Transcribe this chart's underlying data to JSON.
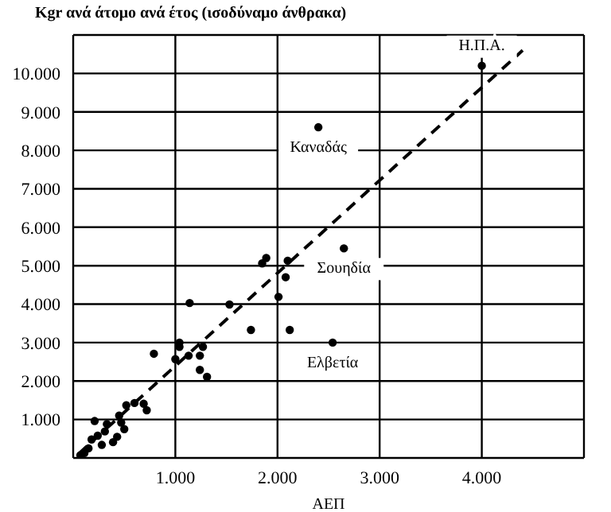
{
  "chart_data": {
    "type": "scatter",
    "title": "Kgr ανά άτομο ανά έτος (ισοδύναμο άνθρακα)",
    "xlabel": "ΑΕΠ",
    "xlim": [
      0,
      5000
    ],
    "ylim": [
      0,
      11000
    ],
    "xticks": [
      {
        "value": 1000,
        "label": "1.000"
      },
      {
        "value": 2000,
        "label": "2.000"
      },
      {
        "value": 3000,
        "label": "3.000"
      },
      {
        "value": 4000,
        "label": "4.000"
      }
    ],
    "yticks": [
      {
        "value": 1000,
        "label": "1.000"
      },
      {
        "value": 2000,
        "label": "2.000"
      },
      {
        "value": 3000,
        "label": "3.000"
      },
      {
        "value": 4000,
        "label": "4.000"
      },
      {
        "value": 5000,
        "label": "5.000"
      },
      {
        "value": 6000,
        "label": "6.000"
      },
      {
        "value": 7000,
        "label": "7.000"
      },
      {
        "value": 8000,
        "label": "8.000"
      },
      {
        "value": 9000,
        "label": "9.000"
      },
      {
        "value": 10000,
        "label": "10.000"
      }
    ],
    "grid": true,
    "marker": "circle",
    "series": [
      {
        "type": "scatter",
        "color": "#000000",
        "x": [
          4000,
          2400,
          2650,
          2540,
          2120,
          1740,
          1530,
          1140,
          1850,
          1890,
          2100,
          2080,
          2010,
          1040,
          1040,
          1000,
          1130,
          1270,
          1240,
          1240,
          1310,
          790,
          690,
          720,
          600,
          520,
          450,
          470,
          500,
          430,
          390,
          310,
          280,
          210,
          240,
          150,
          110,
          70,
          180,
          330
        ],
        "values": [
          10200,
          8600,
          5450,
          3000,
          3330,
          3330,
          3990,
          4030,
          5060,
          5200,
          5130,
          4700,
          4190,
          2890,
          3000,
          2570,
          2660,
          2890,
          2660,
          2290,
          2110,
          2710,
          1410,
          1240,
          1430,
          1370,
          1100,
          920,
          750,
          550,
          410,
          690,
          340,
          960,
          580,
          250,
          130,
          70,
          480,
          880
        ]
      },
      {
        "type": "line",
        "color": "#000000",
        "line_style": "dashed",
        "marker": "none",
        "x": [
          50,
          4400
        ],
        "values": [
          100,
          10600
        ]
      }
    ],
    "annotations": [
      {
        "text": "Η.Π.Α.",
        "x": 4000,
        "y": 10200
      },
      {
        "text": "Καναδάς",
        "x": 2400,
        "y": 8600
      },
      {
        "text": "Σουηδία",
        "x": 2650,
        "y": 5450
      },
      {
        "text": "Ελβετία",
        "x": 2540,
        "y": 3000
      }
    ]
  }
}
